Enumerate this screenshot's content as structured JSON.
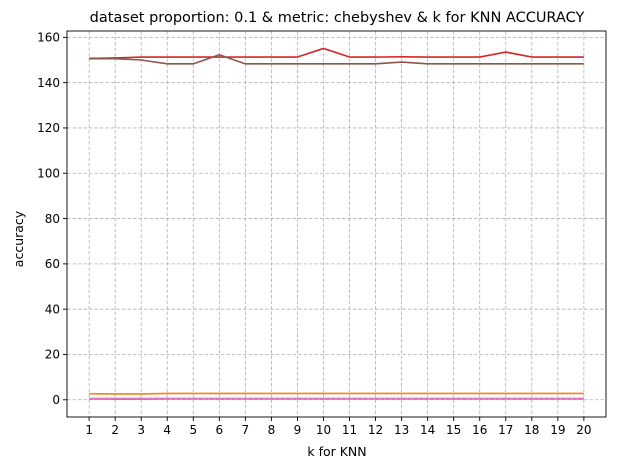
{
  "chart_data": {
    "type": "line",
    "title": "dataset proportion: 0.1 & metric: chebyshev & k for KNN ACCURACY",
    "xlabel": "k for KNN",
    "ylabel": "accuracy",
    "x": [
      1,
      2,
      3,
      4,
      5,
      6,
      7,
      8,
      9,
      10,
      11,
      12,
      13,
      14,
      15,
      16,
      17,
      18,
      19,
      20
    ],
    "xlim": [
      0.15,
      20.85
    ],
    "ylim": [
      -7.6,
      162.8
    ],
    "yticks": [
      0,
      20,
      40,
      60,
      80,
      100,
      120,
      140,
      160
    ],
    "grid": true,
    "grid_style": "dashed",
    "series": [
      {
        "color": "#d62728",
        "values": [
          150.7,
          150.9,
          151.3,
          151.3,
          151.3,
          151.3,
          151.3,
          151.3,
          151.3,
          155.1,
          151.3,
          151.3,
          151.4,
          151.3,
          151.3,
          151.3,
          153.5,
          151.3,
          151.3,
          151.3
        ]
      },
      {
        "color": "#8c564b",
        "values": [
          150.6,
          150.6,
          150.0,
          148.3,
          148.3,
          152.3,
          148.3,
          148.3,
          148.3,
          148.3,
          148.3,
          148.3,
          149.1,
          148.3,
          148.3,
          148.3,
          148.3,
          148.3,
          148.3,
          148.3
        ]
      },
      {
        "color": "#ff7f0e",
        "values": [
          2.7,
          2.6,
          2.6,
          2.8,
          2.8,
          2.8,
          2.8,
          2.8,
          2.8,
          2.8,
          2.8,
          2.8,
          2.8,
          2.8,
          2.8,
          2.8,
          2.8,
          2.8,
          2.8,
          2.8
        ]
      },
      {
        "color": "#9467bd",
        "values": [
          0.4,
          0.3,
          0.3,
          0.4,
          0.4,
          0.4,
          0.4,
          0.4,
          0.4,
          0.4,
          0.4,
          0.4,
          0.4,
          0.4,
          0.4,
          0.4,
          0.4,
          0.4,
          0.4,
          0.4
        ]
      },
      {
        "color": "#e377c2",
        "values": [
          0.6,
          0.6,
          0.6,
          0.6,
          0.6,
          0.6,
          0.6,
          0.6,
          0.6,
          0.6,
          0.6,
          0.6,
          0.6,
          0.6,
          0.6,
          0.6,
          0.6,
          0.6,
          0.6,
          0.6
        ]
      }
    ]
  }
}
